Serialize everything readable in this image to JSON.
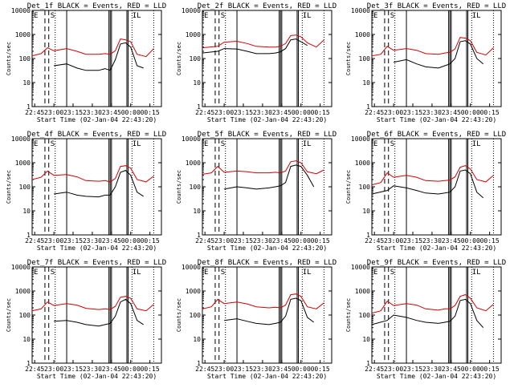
{
  "chart_data": [
    {
      "type": "line",
      "title": "Det_1f BLACK = Events, RED = LLD",
      "xlabel": "Start Time (02-Jan-04 22:43:20)",
      "ylabel": "Counts/sec",
      "yscale": "log",
      "ylim": [
        1,
        10000
      ],
      "xlim": [
        "22:43",
        "00:24"
      ],
      "x_ticks": [
        "22:45",
        "23:00",
        "23:15",
        "23:30",
        "23:45",
        "00:00",
        "00:15"
      ],
      "y_ticks": [
        "1",
        "10",
        "100",
        "1000",
        "10000"
      ],
      "annotations": [
        "E",
        "S",
        "IL"
      ],
      "series": [
        {
          "name": "Events",
          "color": "#000000",
          "x": [
            "22:53",
            "23:00",
            "23:10",
            "23:18",
            "23:25",
            "23:35",
            "23:40",
            "23:44",
            "23:48",
            "23:52",
            "23:56",
            "00:00",
            "00:05",
            "00:10"
          ],
          "y": [
            null,
            50,
            60,
            40,
            32,
            32,
            38,
            32,
            90,
            400,
            450,
            300,
            50,
            40
          ]
        },
        {
          "name": "LLD",
          "color": "#d40000",
          "x": [
            "22:43",
            "22:50",
            "22:55",
            "23:00",
            "23:10",
            "23:18",
            "23:25",
            "23:35",
            "23:40",
            "23:44",
            "23:48",
            "23:52",
            "23:56",
            "00:00",
            "00:05",
            "00:12",
            "00:18"
          ],
          "y": [
            130,
            160,
            280,
            210,
            260,
            200,
            150,
            150,
            160,
            150,
            210,
            650,
            600,
            500,
            150,
            120,
            260
          ]
        }
      ]
    },
    {
      "type": "line",
      "title": "Det_2f BLACK = Events, RED = LLD",
      "xlabel": "Start Time (02-Jan-04 22:43:20)",
      "ylabel": "Counts/sec",
      "yscale": "log",
      "ylim": [
        1,
        10000
      ],
      "xlim": [
        "22:43",
        "00:24"
      ],
      "x_ticks": [
        "22:45",
        "23:00",
        "23:15",
        "23:30",
        "23:45",
        "00:00",
        "00:15"
      ],
      "y_ticks": [
        "1",
        "10",
        "100",
        "1000",
        "10000"
      ],
      "annotations": [
        "E",
        "S",
        "IL"
      ],
      "series": [
        {
          "name": "Events",
          "color": "#000000",
          "x": [
            "22:43",
            "22:55",
            "23:00",
            "23:10",
            "23:18",
            "23:25",
            "23:35",
            "23:40",
            "23:44",
            "23:48",
            "23:52",
            "23:56",
            "00:00",
            "00:05"
          ],
          "y": [
            170,
            200,
            260,
            250,
            200,
            160,
            160,
            170,
            190,
            260,
            600,
            650,
            500,
            350
          ]
        },
        {
          "name": "LLD",
          "color": "#d40000",
          "x": [
            "22:43",
            "22:55",
            "23:00",
            "23:10",
            "23:18",
            "23:25",
            "23:35",
            "23:40",
            "23:44",
            "23:48",
            "23:52",
            "23:56",
            "00:00",
            "00:05",
            "00:12",
            "00:18"
          ],
          "y": [
            280,
            320,
            480,
            520,
            420,
            320,
            300,
            300,
            320,
            420,
            900,
            950,
            800,
            450,
            300,
            600
          ]
        }
      ]
    },
    {
      "type": "line",
      "title": "Det_3f BLACK = Events, RED = LLD",
      "xlabel": "Start Time (02-Jan-04 22:43:20)",
      "ylabel": "Counts/sec",
      "yscale": "log",
      "ylim": [
        1,
        10000
      ],
      "xlim": [
        "22:43",
        "00:24"
      ],
      "x_ticks": [
        "22:45",
        "23:00",
        "23:15",
        "23:30",
        "23:45",
        "00:00",
        "00:15"
      ],
      "y_ticks": [
        "1",
        "10",
        "100",
        "1000",
        "10000"
      ],
      "annotations": [
        "E",
        "S",
        "IL"
      ],
      "series": [
        {
          "name": "Events",
          "color": "#000000",
          "x": [
            "22:53",
            "23:00",
            "23:10",
            "23:18",
            "23:25",
            "23:35",
            "23:40",
            "23:44",
            "23:48",
            "23:52",
            "23:56",
            "00:00",
            "00:05",
            "00:10"
          ],
          "y": [
            null,
            70,
            90,
            60,
            45,
            40,
            50,
            60,
            100,
            500,
            550,
            400,
            100,
            60
          ]
        },
        {
          "name": "LLD",
          "color": "#d40000",
          "x": [
            "22:43",
            "22:50",
            "22:55",
            "23:00",
            "23:10",
            "23:18",
            "23:25",
            "23:35",
            "23:40",
            "23:44",
            "23:48",
            "23:52",
            "23:56",
            "00:00",
            "00:05",
            "00:12",
            "00:18"
          ],
          "y": [
            130,
            150,
            320,
            220,
            260,
            220,
            160,
            150,
            170,
            180,
            250,
            750,
            700,
            550,
            180,
            140,
            280
          ]
        }
      ]
    },
    {
      "type": "line",
      "title": "Det_4f BLACK = Events, RED = LLD",
      "xlabel": "Start Time (02-Jan-04 22:43:20)",
      "ylabel": "Counts/sec",
      "yscale": "log",
      "ylim": [
        1,
        10000
      ],
      "xlim": [
        "22:43",
        "00:24"
      ],
      "x_ticks": [
        "22:45",
        "23:00",
        "23:15",
        "23:30",
        "23:45",
        "00:00",
        "00:15"
      ],
      "y_ticks": [
        "1",
        "10",
        "100",
        "1000",
        "10000"
      ],
      "annotations": [
        "E",
        "S",
        "IL"
      ],
      "series": [
        {
          "name": "Events",
          "color": "#000000",
          "x": [
            "22:53",
            "23:00",
            "23:10",
            "23:18",
            "23:25",
            "23:35",
            "23:40",
            "23:44",
            "23:48",
            "23:52",
            "23:56",
            "00:00",
            "00:05",
            "00:10"
          ],
          "y": [
            null,
            50,
            60,
            45,
            40,
            38,
            45,
            45,
            100,
            400,
            480,
            300,
            60,
            40
          ]
        },
        {
          "name": "LLD",
          "color": "#d40000",
          "x": [
            "22:43",
            "22:50",
            "22:55",
            "23:00",
            "23:10",
            "23:18",
            "23:25",
            "23:35",
            "23:40",
            "23:44",
            "23:48",
            "23:52",
            "23:56",
            "00:00",
            "00:05",
            "00:12",
            "00:18"
          ],
          "y": [
            200,
            250,
            450,
            300,
            320,
            260,
            180,
            170,
            180,
            160,
            220,
            700,
            750,
            600,
            200,
            160,
            280
          ]
        }
      ]
    },
    {
      "type": "line",
      "title": "Det_5f BLACK = Events, RED = LLD",
      "xlabel": "Start Time (02-Jan-04 22:43:20)",
      "ylabel": "Counts/sec",
      "yscale": "log",
      "ylim": [
        1,
        10000
      ],
      "xlim": [
        "22:43",
        "00:24"
      ],
      "x_ticks": [
        "22:45",
        "23:00",
        "23:15",
        "23:30",
        "23:45",
        "00:00",
        "00:15"
      ],
      "y_ticks": [
        "1",
        "10",
        "100",
        "1000",
        "10000"
      ],
      "annotations": [
        "E",
        "S",
        "IL"
      ],
      "series": [
        {
          "name": "Events",
          "color": "#000000",
          "x": [
            "22:53",
            "23:00",
            "23:10",
            "23:18",
            "23:25",
            "23:35",
            "23:40",
            "23:44",
            "23:48",
            "23:52",
            "23:56",
            "00:00",
            "00:05",
            "00:10"
          ],
          "y": [
            null,
            80,
            100,
            90,
            80,
            90,
            100,
            110,
            150,
            700,
            800,
            700,
            300,
            100
          ]
        },
        {
          "name": "LLD",
          "color": "#d40000",
          "x": [
            "22:43",
            "22:50",
            "22:55",
            "23:00",
            "23:10",
            "23:18",
            "23:25",
            "23:35",
            "23:40",
            "23:44",
            "23:48",
            "23:52",
            "23:56",
            "00:00",
            "00:05",
            "00:12",
            "00:18"
          ],
          "y": [
            330,
            380,
            700,
            400,
            450,
            420,
            380,
            380,
            400,
            380,
            450,
            1100,
            1200,
            1000,
            420,
            350,
            500
          ]
        }
      ]
    },
    {
      "type": "line",
      "title": "Det_6f BLACK = Events, RED = LLD",
      "xlabel": "Start Time (02-Jan-04 22:43:20)",
      "ylabel": "Counts/sec",
      "yscale": "log",
      "ylim": [
        1,
        10000
      ],
      "xlim": [
        "22:43",
        "00:24"
      ],
      "x_ticks": [
        "22:45",
        "23:00",
        "23:15",
        "23:30",
        "23:45",
        "00:00",
        "00:15"
      ],
      "y_ticks": [
        "1",
        "10",
        "100",
        "1000",
        "10000"
      ],
      "annotations": [
        "E",
        "S",
        "IL"
      ],
      "series": [
        {
          "name": "Events",
          "color": "#000000",
          "x": [
            "22:43",
            "22:55",
            "23:00",
            "23:10",
            "23:18",
            "23:25",
            "23:35",
            "23:40",
            "23:44",
            "23:48",
            "23:52",
            "23:56",
            "00:00",
            "00:05",
            "00:10"
          ],
          "y": [
            50,
            70,
            110,
            90,
            70,
            55,
            50,
            55,
            60,
            100,
            450,
            500,
            350,
            60,
            35
          ]
        },
        {
          "name": "LLD",
          "color": "#d40000",
          "x": [
            "22:43",
            "22:50",
            "22:55",
            "23:00",
            "23:10",
            "23:18",
            "23:25",
            "23:35",
            "23:40",
            "23:44",
            "23:48",
            "23:52",
            "23:56",
            "00:00",
            "00:05",
            "00:12",
            "00:18"
          ],
          "y": [
            120,
            150,
            380,
            250,
            300,
            250,
            180,
            170,
            180,
            190,
            260,
            650,
            750,
            550,
            200,
            160,
            300
          ]
        }
      ]
    },
    {
      "type": "line",
      "title": "Det_7f BLACK = Events, RED = LLD",
      "xlabel": "Start Time (02-Jan-04 22:43:20)",
      "ylabel": "Counts/sec",
      "yscale": "log",
      "ylim": [
        1,
        10000
      ],
      "xlim": [
        "22:43",
        "00:24"
      ],
      "x_ticks": [
        "22:45",
        "23:00",
        "23:15",
        "23:30",
        "23:45",
        "00:00",
        "00:15"
      ],
      "y_ticks": [
        "1",
        "10",
        "100",
        "1000",
        "10000"
      ],
      "annotations": [
        "E",
        "S",
        "IL"
      ],
      "series": [
        {
          "name": "Events",
          "color": "#000000",
          "x": [
            "22:53",
            "23:00",
            "23:10",
            "23:18",
            "23:25",
            "23:35",
            "23:40",
            "23:44",
            "23:48",
            "23:52",
            "23:56",
            "00:00",
            "00:05",
            "00:10"
          ],
          "y": [
            null,
            55,
            60,
            50,
            40,
            35,
            40,
            45,
            90,
            350,
            450,
            300,
            60,
            40
          ]
        },
        {
          "name": "LLD",
          "color": "#d40000",
          "x": [
            "22:43",
            "22:50",
            "22:55",
            "23:00",
            "23:10",
            "23:18",
            "23:25",
            "23:35",
            "23:40",
            "23:44",
            "23:48",
            "23:52",
            "23:56",
            "00:00",
            "00:05",
            "00:12",
            "00:18"
          ],
          "y": [
            150,
            180,
            350,
            250,
            300,
            260,
            190,
            170,
            180,
            170,
            230,
            550,
            600,
            500,
            180,
            150,
            280
          ]
        }
      ]
    },
    {
      "type": "line",
      "title": "Det_8f BLACK = Events, RED = LLD",
      "xlabel": "Start Time (02-Jan-04 22:43:20)",
      "ylabel": "Counts/sec",
      "yscale": "log",
      "ylim": [
        1,
        10000
      ],
      "xlim": [
        "22:43",
        "00:24"
      ],
      "x_ticks": [
        "22:45",
        "23:00",
        "23:15",
        "23:30",
        "23:45",
        "00:00",
        "00:15"
      ],
      "y_ticks": [
        "1",
        "10",
        "100",
        "1000",
        "10000"
      ],
      "annotations": [
        "E",
        "S",
        "IL"
      ],
      "series": [
        {
          "name": "Events",
          "color": "#000000",
          "x": [
            "22:53",
            "23:00",
            "23:10",
            "23:18",
            "23:25",
            "23:35",
            "23:40",
            "23:44",
            "23:48",
            "23:52",
            "23:56",
            "00:00",
            "00:05",
            "00:10"
          ],
          "y": [
            null,
            60,
            70,
            55,
            45,
            40,
            45,
            50,
            90,
            450,
            500,
            400,
            80,
            50
          ]
        },
        {
          "name": "LLD",
          "color": "#d40000",
          "x": [
            "22:43",
            "22:50",
            "22:55",
            "23:00",
            "23:10",
            "23:18",
            "23:25",
            "23:35",
            "23:40",
            "23:44",
            "23:48",
            "23:52",
            "23:56",
            "00:00",
            "00:05",
            "00:12",
            "00:18"
          ],
          "y": [
            180,
            220,
            450,
            300,
            350,
            290,
            220,
            200,
            210,
            200,
            260,
            700,
            750,
            600,
            220,
            180,
            320
          ]
        }
      ]
    },
    {
      "type": "line",
      "title": "Det_9f BLACK = Events, RED = LLD",
      "xlabel": "Start Time (02-Jan-04 22:43:20)",
      "ylabel": "Counts/sec",
      "yscale": "log",
      "ylim": [
        1,
        10000
      ],
      "xlim": [
        "22:43",
        "00:24"
      ],
      "x_ticks": [
        "22:45",
        "23:00",
        "23:15",
        "23:30",
        "23:45",
        "00:00",
        "00:15"
      ],
      "y_ticks": [
        "1",
        "10",
        "100",
        "1000",
        "10000"
      ],
      "annotations": [
        "E",
        "S",
        "IL"
      ],
      "series": [
        {
          "name": "Events",
          "color": "#000000",
          "x": [
            "22:43",
            "22:55",
            "23:00",
            "23:10",
            "23:18",
            "23:25",
            "23:35",
            "23:40",
            "23:44",
            "23:48",
            "23:52",
            "23:56",
            "00:00",
            "00:05",
            "00:10"
          ],
          "y": [
            40,
            60,
            100,
            80,
            60,
            50,
            45,
            50,
            55,
            90,
            400,
            450,
            300,
            60,
            30
          ]
        },
        {
          "name": "LLD",
          "color": "#d40000",
          "x": [
            "22:43",
            "22:50",
            "22:55",
            "23:00",
            "23:10",
            "23:18",
            "23:25",
            "23:35",
            "23:40",
            "23:44",
            "23:48",
            "23:52",
            "23:56",
            "00:00",
            "00:05",
            "00:12",
            "00:18"
          ],
          "y": [
            120,
            150,
            380,
            250,
            300,
            260,
            180,
            160,
            180,
            180,
            250,
            600,
            700,
            500,
            200,
            150,
            280
          ]
        }
      ]
    }
  ]
}
